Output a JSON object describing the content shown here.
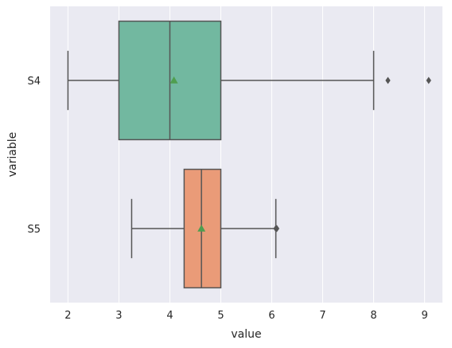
{
  "chart_data": {
    "type": "boxplot",
    "orientation": "horizontal",
    "xlabel": "value",
    "ylabel": "variable",
    "xlim": [
      1.65,
      9.35
    ],
    "xticks": [
      2,
      3,
      4,
      5,
      6,
      7,
      8,
      9
    ],
    "grid": true,
    "series": [
      {
        "category": "S4",
        "color": "#72b8a0",
        "whisker_low": 2,
        "q1": 3,
        "median": 4,
        "q3": 5,
        "whisker_high": 8,
        "mean": 4.08,
        "outliers": [
          8.28,
          9.08
        ]
      },
      {
        "category": "S5",
        "color": "#ea9b78",
        "whisker_low": 3.25,
        "q1": 4.28,
        "median": 4.62,
        "q3": 5,
        "whisker_high": 6.08,
        "mean": 4.62,
        "outliers": [
          6.08,
          6.1
        ]
      }
    ],
    "mean_marker_color": "#4f9e4f",
    "line_color": "#555555",
    "background_color": "#eaeaf2"
  }
}
